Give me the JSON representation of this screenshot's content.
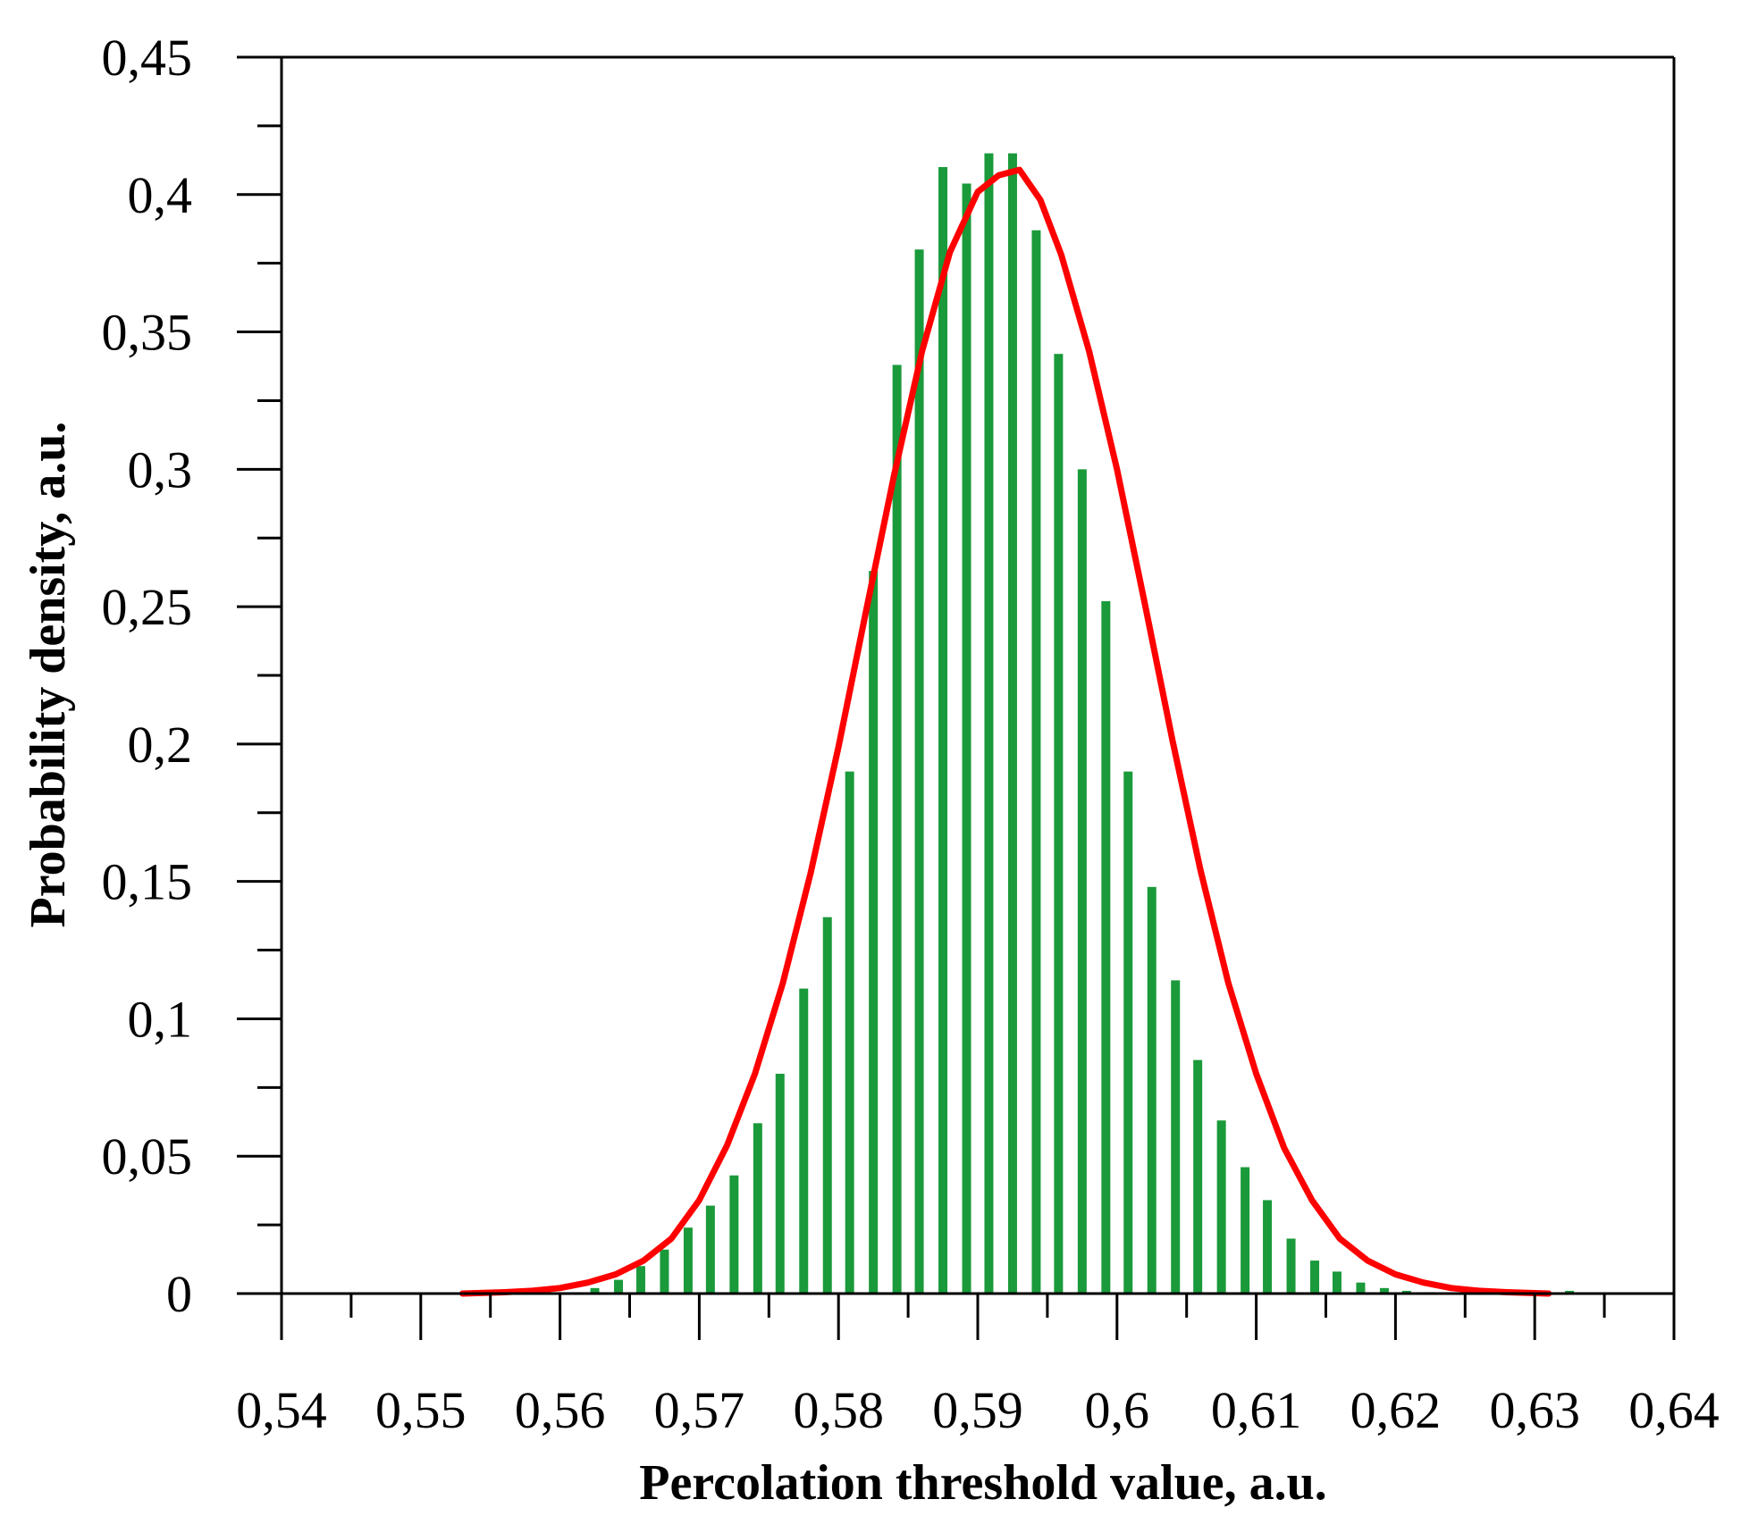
{
  "chart_data": {
    "type": "bar",
    "xlabel": "Percolation threshold value, a.u.",
    "ylabel": "Probability density, a.u.",
    "xlim": [
      0.54,
      0.64
    ],
    "ylim": [
      0,
      0.45
    ],
    "x_ticks": [
      "0,54",
      "0,55",
      "0,56",
      "0,57",
      "0,58",
      "0,59",
      "0,6",
      "0,61",
      "0,62",
      "0,63",
      "0,64"
    ],
    "y_ticks": [
      "0",
      "0,05",
      "0,1",
      "0,15",
      "0,2",
      "0,25",
      "0,3",
      "0,35",
      "0,4",
      "0,45"
    ],
    "grid": false,
    "legend": "none",
    "colors": {
      "bars": "#1a9a3a",
      "curve": "#ff0000",
      "axes": "#000000"
    },
    "series": [
      {
        "type": "bar",
        "x": [
          0.5625,
          0.5642,
          0.5658,
          0.5675,
          0.5692,
          0.5708,
          0.5725,
          0.5742,
          0.5758,
          0.5775,
          0.5792,
          0.5808,
          0.5825,
          0.5842,
          0.5858,
          0.5875,
          0.5892,
          0.5908,
          0.5925,
          0.5942,
          0.5958,
          0.5975,
          0.5992,
          0.6008,
          0.6025,
          0.6042,
          0.6058,
          0.6075,
          0.6092,
          0.6108,
          0.6125,
          0.6142,
          0.6158,
          0.6175,
          0.6192,
          0.6208,
          0.6225,
          0.6242,
          0.6258,
          0.6275,
          0.6325
        ],
        "values": [
          0.002,
          0.005,
          0.01,
          0.016,
          0.024,
          0.032,
          0.043,
          0.062,
          0.08,
          0.111,
          0.137,
          0.19,
          0.263,
          0.338,
          0.38,
          0.41,
          0.404,
          0.415,
          0.415,
          0.387,
          0.342,
          0.3,
          0.252,
          0.19,
          0.148,
          0.114,
          0.085,
          0.063,
          0.046,
          0.034,
          0.02,
          0.012,
          0.008,
          0.004,
          0.002,
          0.001,
          0.0005,
          0.0003,
          0.0002,
          0.0001,
          0.001
        ]
      },
      {
        "type": "line",
        "x": [
          0.553,
          0.556,
          0.558,
          0.56,
          0.562,
          0.564,
          0.566,
          0.568,
          0.57,
          0.572,
          0.574,
          0.576,
          0.578,
          0.58,
          0.582,
          0.584,
          0.586,
          0.588,
          0.59,
          0.5915,
          0.593,
          0.5945,
          0.596,
          0.598,
          0.6,
          0.602,
          0.604,
          0.606,
          0.608,
          0.61,
          0.612,
          0.614,
          0.616,
          0.618,
          0.62,
          0.622,
          0.624,
          0.626,
          0.628,
          0.631
        ],
        "values": [
          0.0,
          0.0005,
          0.001,
          0.002,
          0.004,
          0.007,
          0.012,
          0.02,
          0.034,
          0.054,
          0.08,
          0.113,
          0.153,
          0.199,
          0.249,
          0.298,
          0.343,
          0.379,
          0.401,
          0.407,
          0.409,
          0.398,
          0.378,
          0.343,
          0.3,
          0.251,
          0.201,
          0.154,
          0.113,
          0.08,
          0.053,
          0.034,
          0.02,
          0.012,
          0.007,
          0.004,
          0.002,
          0.001,
          0.0005,
          0.0
        ]
      }
    ]
  }
}
